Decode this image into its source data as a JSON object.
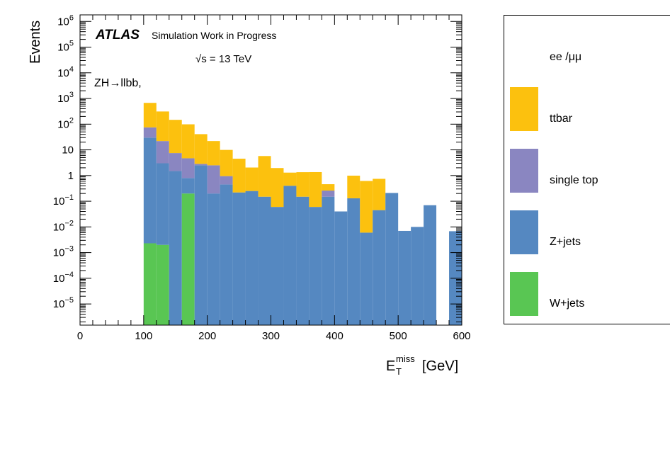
{
  "chart_data": {
    "type": "bar",
    "stacked": true,
    "log_y": true,
    "xlabel_main": "E",
    "xlabel_sup": "miss",
    "xlabel_sub": "T",
    "xlabel_unit": "[GeV]",
    "ylabel": "Events",
    "xlim": [
      0,
      600
    ],
    "ylim": [
      1.5e-06,
      1800000.0
    ],
    "x_ticks": [
      "0",
      "100",
      "200",
      "300",
      "400",
      "500",
      "600"
    ],
    "y_ticks": [
      {
        "base": "10",
        "exp": "6",
        "v": 1000000.0
      },
      {
        "base": "10",
        "exp": "5",
        "v": 100000.0
      },
      {
        "base": "10",
        "exp": "4",
        "v": 10000.0
      },
      {
        "base": "10",
        "exp": "3",
        "v": 1000.0
      },
      {
        "base": "10",
        "exp": "2",
        "v": 100.0
      },
      {
        "base": "10",
        "exp": "",
        "v": 10
      },
      {
        "base": "1",
        "exp": "",
        "v": 1
      },
      {
        "base": "10",
        "exp": "−1",
        "v": 0.1
      },
      {
        "base": "10",
        "exp": "−2",
        "v": 0.01
      },
      {
        "base": "10",
        "exp": "−3",
        "v": 0.001
      },
      {
        "base": "10",
        "exp": "−4",
        "v": 0.0001
      },
      {
        "base": "10",
        "exp": "−5",
        "v": 1e-05
      }
    ],
    "bin_edges": [
      100,
      120,
      140,
      160,
      180,
      200,
      220,
      240,
      260,
      280,
      300,
      320,
      340,
      360,
      380,
      400,
      420,
      440,
      460,
      480,
      500,
      520,
      540,
      560,
      580,
      600
    ],
    "series": [
      {
        "name": "W+jets",
        "color": "#59c653",
        "values": [
          0.0023,
          0.002,
          0,
          0.2,
          0,
          0,
          0,
          0,
          0,
          0,
          0,
          0,
          0,
          0,
          0,
          0,
          0,
          0,
          0,
          0,
          0,
          0,
          0,
          0,
          0
        ]
      },
      {
        "name": "Z+jets",
        "color": "#5588c1",
        "values": [
          30,
          3,
          1.5,
          0.6,
          2.5,
          0.2,
          0.45,
          0.22,
          0.25,
          0.15,
          0.06,
          0.4,
          0.15,
          0.06,
          0.15,
          0.04,
          0.13,
          0.006,
          0.045,
          0.21,
          0.007,
          0.01,
          0.07,
          0,
          0.0068
        ]
      },
      {
        "name": "single top",
        "color": "#8a86c1",
        "values": [
          45,
          19,
          6,
          3.9,
          0.35,
          2.3,
          0.5,
          0,
          0,
          0,
          0,
          0,
          0,
          0,
          0.11,
          0,
          0,
          0,
          0,
          0,
          0,
          0,
          0,
          0,
          0
        ]
      },
      {
        "name": "ttbar",
        "color": "#fcc10e",
        "values": [
          600,
          290,
          140,
          94,
          38,
          19.5,
          9,
          4.3,
          1.8,
          5.6,
          1.9,
          0.9,
          1.2,
          1.3,
          0.2,
          0,
          0.86,
          0.61,
          0.7,
          0,
          0,
          0,
          0,
          0,
          0
        ]
      },
      {
        "name": "ee /μμ",
        "color": "#ffffff",
        "values": []
      }
    ],
    "legend_position": "right, outside plot",
    "legend": [
      "ee /μμ",
      "ttbar",
      "single top",
      "Z+jets",
      "W+jets"
    ]
  },
  "annotations": {
    "atlas": "ATLAS",
    "atlas_sub": "Simulation Work in Progress",
    "energy": "√s = 13 TeV",
    "channel": "ZH→llbb,"
  }
}
